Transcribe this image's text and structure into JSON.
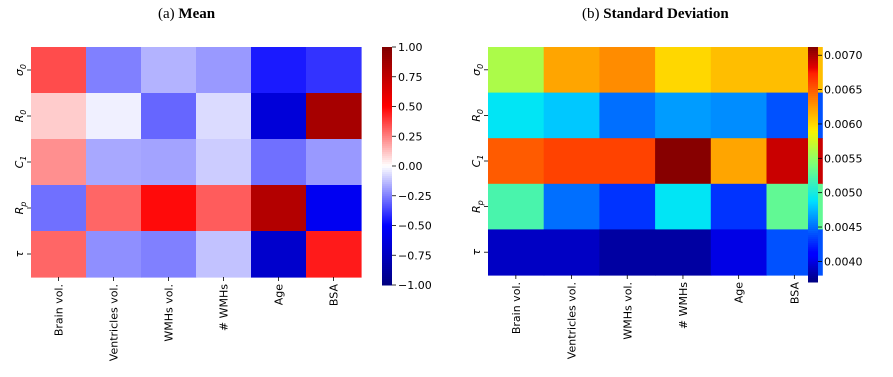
{
  "captions": [
    {
      "prefix": "(a) ",
      "title": "Mean"
    },
    {
      "prefix": "(b) ",
      "title": "Standard Deviation"
    }
  ],
  "chart_data": [
    {
      "type": "heatmap",
      "title": "Mean",
      "colormap": "bwr",
      "x_categories": [
        "Brain vol.",
        "Ventricles vol.",
        "WMHs vol.",
        "# WMHs",
        "Age",
        "BSA"
      ],
      "y_categories": [
        {
          "base": "σ",
          "sub": "0"
        },
        {
          "base": "R",
          "sub": "0"
        },
        {
          "base": "C",
          "sub": "1"
        },
        {
          "base": "R",
          "sub": "p"
        },
        {
          "base": "τ",
          "sub": ""
        }
      ],
      "values": [
        [
          0.35,
          -0.25,
          -0.15,
          -0.2,
          -0.45,
          -0.4
        ],
        [
          0.1,
          -0.03,
          -0.3,
          -0.07,
          -0.65,
          0.85
        ],
        [
          0.22,
          -0.17,
          -0.18,
          -0.1,
          -0.28,
          -0.2
        ],
        [
          -0.28,
          0.3,
          0.48,
          0.32,
          0.8,
          -0.55
        ],
        [
          0.3,
          -0.22,
          -0.25,
          -0.12,
          -0.7,
          0.45
        ]
      ],
      "vmin": -1.0,
      "vmax": 1.0,
      "colorbar_ticks": [
        1.0,
        0.75,
        0.5,
        0.25,
        0.0,
        -0.25,
        -0.5,
        -0.75,
        -1.0
      ],
      "colorbar_labels": [
        "1.00",
        "0.75",
        "0.50",
        "0.25",
        "0.00",
        "−0.25",
        "−0.50",
        "−0.75",
        "−1.00"
      ]
    },
    {
      "type": "heatmap",
      "title": "Standard Deviation",
      "colormap": "jet",
      "x_categories": [
        "Brain vol.",
        "Ventricles vol.",
        "WMHs vol.",
        "# WMHs",
        "Age",
        "BSA"
      ],
      "y_categories": [
        {
          "base": "σ",
          "sub": "0"
        },
        {
          "base": "R",
          "sub": "0"
        },
        {
          "base": "C",
          "sub": "1"
        },
        {
          "base": "R",
          "sub": "p"
        },
        {
          "base": "τ",
          "sub": ""
        }
      ],
      "values": [
        [
          0.0056,
          0.0062,
          0.0063,
          0.006,
          0.0061,
          0.0061
        ],
        [
          0.0049,
          0.0048,
          0.0045,
          0.00465,
          0.0046,
          0.0044
        ],
        [
          0.0065,
          0.0066,
          0.0066,
          0.0071,
          0.0062,
          0.0069
        ],
        [
          0.0052,
          0.0045,
          0.0043,
          0.0049,
          0.0043,
          0.0053
        ],
        [
          0.0039,
          0.0039,
          0.0038,
          0.0038,
          0.004,
          0.0044
        ]
      ],
      "vmin": 0.0037,
      "vmax": 0.00712,
      "colorbar_ticks": [
        0.007,
        0.0065,
        0.006,
        0.0055,
        0.005,
        0.0045,
        0.004
      ],
      "colorbar_labels": [
        "0.0070",
        "0.0065",
        "0.0060",
        "0.0055",
        "0.0050",
        "0.0045",
        "0.0040"
      ]
    }
  ]
}
